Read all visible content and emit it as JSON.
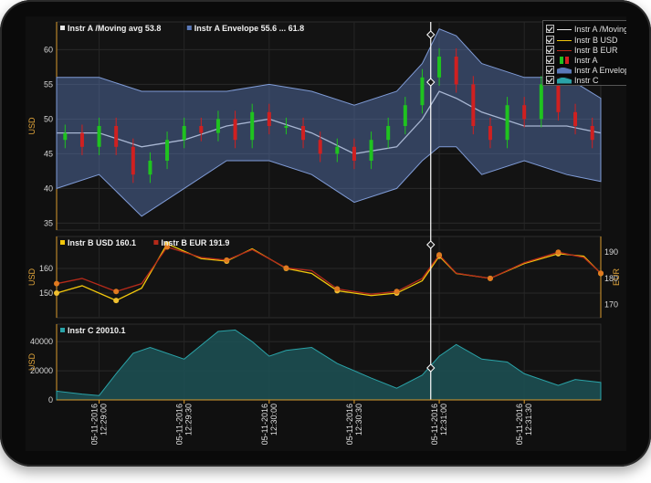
{
  "chart_data": {
    "type": "financial-multi-pane",
    "x_ticks": [
      "05-11-2016 12:29:00",
      "05-11-2016 12:29:30",
      "05-11-2016 12:30:00",
      "05-11-2016 12:30:30",
      "05-11-2016 12:31:00",
      "05-11-2016 12:31:30"
    ],
    "x_tick_positions_min": [
      0,
      0.5,
      1.0,
      1.5,
      2.0,
      2.5
    ],
    "panes": [
      {
        "id": "pane1",
        "ylabel": "USD",
        "yticks": [
          35,
          40,
          45,
          50,
          55,
          60
        ],
        "ylim": [
          34,
          64
        ],
        "legend_items": [
          "Instr A /Moving avg 53.8",
          "Instr A Envelope 55.6 ... 61.8"
        ],
        "series": [
          {
            "name": "Instr A /Moving avg",
            "type": "line",
            "color": "#e8e8e8",
            "x": [
              -0.25,
              0.0,
              0.25,
              0.5,
              0.75,
              1.0,
              1.25,
              1.5,
              1.75,
              1.9,
              2.0,
              2.1,
              2.25,
              2.5,
              2.75,
              2.95
            ],
            "y": [
              48,
              48,
              46,
              47,
              49,
              50,
              48,
              45,
              46,
              50,
              54,
              53,
              51,
              49,
              49,
              48
            ]
          },
          {
            "name": "Instr A Envelope",
            "type": "band",
            "color": "#5a79b8",
            "x": [
              -0.25,
              0.0,
              0.25,
              0.5,
              0.75,
              1.0,
              1.25,
              1.5,
              1.75,
              1.9,
              2.0,
              2.1,
              2.25,
              2.5,
              2.75,
              2.95
            ],
            "low": [
              40,
              42,
              36,
              40,
              44,
              44,
              42,
              38,
              40,
              44,
              46,
              46,
              42,
              44,
              42,
              41
            ],
            "high": [
              56,
              56,
              54,
              54,
              54,
              55,
              54,
              52,
              54,
              58,
              63,
              62,
              58,
              56,
              56,
              53
            ]
          },
          {
            "name": "Instr A",
            "type": "candlestick",
            "up_color": "#1fc31f",
            "down_color": "#d02020",
            "x": [
              -0.2,
              -0.1,
              0.0,
              0.1,
              0.2,
              0.3,
              0.4,
              0.5,
              0.6,
              0.7,
              0.8,
              0.9,
              1.0,
              1.1,
              1.2,
              1.3,
              1.4,
              1.5,
              1.6,
              1.7,
              1.8,
              1.9,
              2.0,
              2.1,
              2.2,
              2.3,
              2.4,
              2.5,
              2.6,
              2.7,
              2.8,
              2.9
            ],
            "close": [
              48,
              46,
              49,
              46,
              42,
              44,
              47,
              49,
              48,
              50,
              47,
              51,
              49,
              49,
              47,
              45,
              46,
              44,
              47,
              49,
              52,
              56,
              59,
              55,
              49,
              47,
              52,
              50,
              55,
              51,
              49,
              47
            ]
          }
        ]
      },
      {
        "id": "pane2",
        "ylabel": "USD",
        "ylabel_right": "EUR",
        "yticks": [
          150,
          160
        ],
        "ylim": [
          140,
          173
        ],
        "yticks_right": [
          170,
          180,
          190
        ],
        "ylim_right": [
          165,
          196
        ],
        "legend_items": [
          "Instr B USD 160.1",
          "Instr B EUR 191.9"
        ],
        "series": [
          {
            "name": "Instr B USD",
            "type": "line",
            "color": "#f2c70c",
            "x": [
              -0.25,
              -0.1,
              0.1,
              0.25,
              0.4,
              0.6,
              0.75,
              0.9,
              1.1,
              1.25,
              1.4,
              1.6,
              1.75,
              1.9,
              2.0,
              2.1,
              2.3,
              2.5,
              2.7,
              2.85,
              2.95
            ],
            "y": [
              150,
              153,
              147,
              152,
              170,
              164,
              163,
              168,
              160,
              158,
              151,
              149,
              150,
              155,
              165,
              158,
              156,
              162,
              166,
              165,
              158
            ]
          },
          {
            "name": "Instr B EUR",
            "type": "line",
            "color": "#b52a1a",
            "x": [
              -0.25,
              -0.1,
              0.1,
              0.25,
              0.4,
              0.6,
              0.75,
              0.9,
              1.1,
              1.25,
              1.4,
              1.6,
              1.75,
              1.9,
              2.0,
              2.1,
              2.3,
              2.5,
              2.7,
              2.85,
              2.95
            ],
            "y": [
              178,
              180,
              175,
              178,
              192,
              188,
              187,
              191,
              184,
              183,
              176,
              174,
              175,
              180,
              189,
              182,
              180,
              186,
              190,
              188,
              182
            ]
          }
        ]
      },
      {
        "id": "pane3",
        "ylabel": "USD",
        "yticks": [
          0,
          20000,
          40000
        ],
        "ylim": [
          0,
          52000
        ],
        "legend_items": [
          "Instr C 20010.1"
        ],
        "series": [
          {
            "name": "Instr C",
            "type": "area",
            "color": "#2aa3a8",
            "x": [
              -0.25,
              -0.1,
              0.0,
              0.1,
              0.2,
              0.3,
              0.5,
              0.7,
              0.8,
              0.9,
              1.0,
              1.1,
              1.25,
              1.4,
              1.6,
              1.75,
              1.9,
              2.0,
              2.1,
              2.25,
              2.4,
              2.5,
              2.7,
              2.8,
              2.95
            ],
            "y": [
              6000,
              4000,
              3000,
              18000,
              32000,
              36000,
              28000,
              47000,
              48000,
              40000,
              30000,
              34000,
              36000,
              25000,
              15000,
              8000,
              17000,
              30000,
              38000,
              28000,
              26000,
              18000,
              10000,
              14000,
              12000
            ]
          }
        ]
      }
    ],
    "cursor_x_min": 1.95
  }
}
